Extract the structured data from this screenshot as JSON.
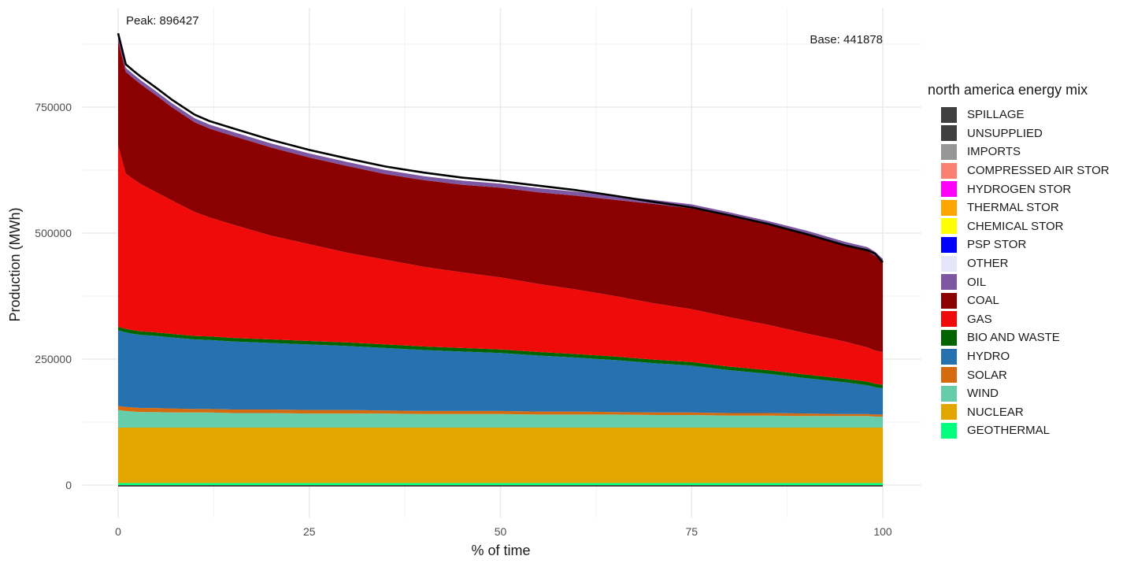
{
  "chart_data": {
    "type": "area",
    "title": "",
    "xlabel": "% of time",
    "ylabel": "Production (MWh)",
    "xlim": [
      0,
      100
    ],
    "ylim": [
      -50000,
      930000
    ],
    "x_ticks": [
      0,
      25,
      50,
      75,
      100
    ],
    "y_ticks": [
      0,
      250000,
      500000,
      750000
    ],
    "grid": true,
    "legend_title": "north america energy mix",
    "legend_position": "right",
    "annotations": {
      "peak": "Peak: 896427",
      "base": "Base: 441878"
    },
    "x": [
      0,
      1,
      2,
      3,
      5,
      7,
      10,
      12,
      15,
      20,
      25,
      30,
      35,
      40,
      45,
      50,
      55,
      60,
      65,
      70,
      75,
      80,
      85,
      90,
      95,
      98,
      99,
      100
    ],
    "load_line": {
      "name": "load",
      "color": "#000000",
      "values": [
        896427,
        835000,
        822000,
        810000,
        788000,
        765000,
        735000,
        722000,
        708000,
        685000,
        665000,
        648000,
        632000,
        620000,
        610000,
        603000,
        594000,
        585000,
        574000,
        562000,
        551000,
        535000,
        518000,
        498000,
        476000,
        466000,
        459000,
        441878
      ]
    },
    "series": [
      {
        "name": "GEOTHERMAL",
        "color": "#00FF7F",
        "values": [
          4000,
          4000,
          4000,
          4000,
          4000,
          4000,
          4000,
          4000,
          4000,
          4000,
          4000,
          4000,
          4000,
          4000,
          4000,
          4000,
          4000,
          4000,
          4000,
          4000,
          4000,
          4000,
          4000,
          4000,
          4000,
          4000,
          4000,
          4000
        ]
      },
      {
        "name": "NUCLEAR",
        "color": "#E3A600",
        "values": [
          110000,
          110000,
          110000,
          110000,
          110000,
          110000,
          110000,
          110000,
          110000,
          110000,
          110000,
          110000,
          110000,
          110000,
          110000,
          110000,
          110000,
          110000,
          110000,
          110000,
          110000,
          110000,
          110000,
          110000,
          110000,
          110000,
          110000,
          110000
        ]
      },
      {
        "name": "WIND",
        "color": "#66CDAA",
        "values": [
          35000,
          33000,
          32000,
          31000,
          31000,
          30000,
          30000,
          30000,
          29000,
          29000,
          28000,
          28000,
          28000,
          27000,
          27000,
          27000,
          26000,
          26000,
          26000,
          25000,
          25000,
          24000,
          24000,
          23000,
          23000,
          23000,
          22000,
          22000
        ]
      },
      {
        "name": "SOLAR",
        "color": "#D66B0D",
        "values": [
          8000,
          8000,
          8000,
          8000,
          8000,
          8000,
          7000,
          7000,
          7000,
          7000,
          7000,
          7000,
          6000,
          6000,
          6000,
          6000,
          6000,
          6000,
          5000,
          5000,
          5000,
          5000,
          5000,
          5000,
          4000,
          4000,
          4000,
          4000
        ]
      },
      {
        "name": "HYDRO",
        "color": "#2672B0",
        "values": [
          150000,
          148000,
          146000,
          145000,
          143000,
          141000,
          138000,
          137000,
          135000,
          132000,
          130000,
          127000,
          124000,
          121000,
          118000,
          115000,
          111000,
          107000,
          103000,
          98000,
          93000,
          85000,
          78000,
          70000,
          63000,
          57000,
          54000,
          52000
        ]
      },
      {
        "name": "BIO AND WASTE",
        "color": "#006400",
        "values": [
          7000,
          7000,
          7000,
          7000,
          7000,
          7000,
          7000,
          7000,
          7000,
          7000,
          7000,
          7000,
          7000,
          7000,
          7000,
          7000,
          7000,
          7000,
          7000,
          7000,
          7000,
          7000,
          7000,
          7000,
          7000,
          7000,
          7000,
          7000
        ]
      },
      {
        "name": "GAS",
        "color": "#F00B0B",
        "values": [
          360000,
          308000,
          300000,
          292000,
          278000,
          265000,
          246000,
          236000,
          225000,
          206000,
          192000,
          178000,
          168000,
          158000,
          150000,
          143000,
          135000,
          128000,
          120000,
          112000,
          105000,
          98000,
          90000,
          82000,
          74000,
          68000,
          66000,
          65000
        ]
      },
      {
        "name": "COAL",
        "color": "#8B0000",
        "values": [
          207427,
          202000,
          200000,
          198000,
          192000,
          185000,
          178000,
          176000,
          176000,
          175000,
          172000,
          172000,
          170000,
          172000,
          174000,
          178000,
          182000,
          186000,
          191000,
          197000,
          200000,
          200000,
          198000,
          196000,
          190000,
          191000,
          188000,
          176878
        ]
      },
      {
        "name": "OIL",
        "color": "#7E57A3",
        "values": [
          8000,
          8000,
          8000,
          8000,
          8000,
          8000,
          8000,
          8000,
          8000,
          8000,
          8000,
          8000,
          8000,
          8000,
          8000,
          8000,
          8000,
          8000,
          8000,
          8000,
          8000,
          8000,
          8000,
          8000,
          8000,
          8000,
          8000,
          8000
        ]
      },
      {
        "name": "OTHER",
        "color": "#E6E6FA",
        "values": [
          0,
          0,
          0,
          0,
          0,
          0,
          0,
          0,
          0,
          0,
          0,
          0,
          0,
          0,
          0,
          0,
          0,
          0,
          0,
          0,
          0,
          0,
          0,
          0,
          0,
          0,
          0,
          0
        ]
      },
      {
        "name": "PSP STOR",
        "color": "#0000FF",
        "values": [
          0,
          0,
          0,
          0,
          0,
          0,
          0,
          0,
          0,
          0,
          0,
          0,
          0,
          0,
          0,
          0,
          0,
          0,
          0,
          0,
          0,
          0,
          0,
          0,
          0,
          0,
          0,
          0
        ]
      },
      {
        "name": "CHEMICAL STOR",
        "color": "#FFFF00",
        "values": [
          0,
          0,
          0,
          0,
          0,
          0,
          0,
          0,
          0,
          0,
          0,
          0,
          0,
          0,
          0,
          0,
          0,
          0,
          0,
          0,
          0,
          0,
          0,
          0,
          0,
          0,
          0,
          0
        ]
      },
      {
        "name": "THERMAL STOR",
        "color": "#FFA500",
        "values": [
          0,
          0,
          0,
          0,
          0,
          0,
          0,
          0,
          0,
          0,
          0,
          0,
          0,
          0,
          0,
          0,
          0,
          0,
          0,
          0,
          0,
          0,
          0,
          0,
          0,
          0,
          0,
          0
        ]
      },
      {
        "name": "HYDROGEN STOR",
        "color": "#FF00FF",
        "values": [
          0,
          0,
          0,
          0,
          0,
          0,
          0,
          0,
          0,
          0,
          0,
          0,
          0,
          0,
          0,
          0,
          0,
          0,
          0,
          0,
          0,
          0,
          0,
          0,
          0,
          0,
          0,
          0
        ]
      },
      {
        "name": "COMPRESSED AIR STOR",
        "color": "#FA8072",
        "values": [
          0,
          0,
          0,
          0,
          0,
          0,
          0,
          0,
          0,
          0,
          0,
          0,
          0,
          0,
          0,
          0,
          0,
          0,
          0,
          0,
          0,
          0,
          0,
          0,
          0,
          0,
          0,
          0
        ]
      },
      {
        "name": "IMPORTS",
        "color": "#969696",
        "values": [
          0,
          0,
          0,
          0,
          0,
          0,
          0,
          0,
          0,
          0,
          0,
          0,
          0,
          0,
          0,
          0,
          0,
          0,
          0,
          0,
          0,
          0,
          0,
          0,
          0,
          0,
          0,
          0
        ]
      },
      {
        "name": "UNSUPPLIED",
        "color": "#404040",
        "values": [
          0,
          0,
          0,
          0,
          0,
          0,
          0,
          0,
          0,
          0,
          0,
          0,
          0,
          0,
          0,
          0,
          0,
          0,
          0,
          0,
          0,
          0,
          0,
          0,
          0,
          0,
          0,
          0
        ]
      },
      {
        "name": "SPILLAGE",
        "color": "#404040",
        "values": [
          -3000,
          -3000,
          -3000,
          -3000,
          -3000,
          -3000,
          -3000,
          -3000,
          -3000,
          -3000,
          -3000,
          -3000,
          -3000,
          -3000,
          -3000,
          -3000,
          -3000,
          -3000,
          -3000,
          -3000,
          -3000,
          -3000,
          -3000,
          -3000,
          -3000,
          -3000,
          -3000,
          -3000
        ]
      }
    ]
  }
}
